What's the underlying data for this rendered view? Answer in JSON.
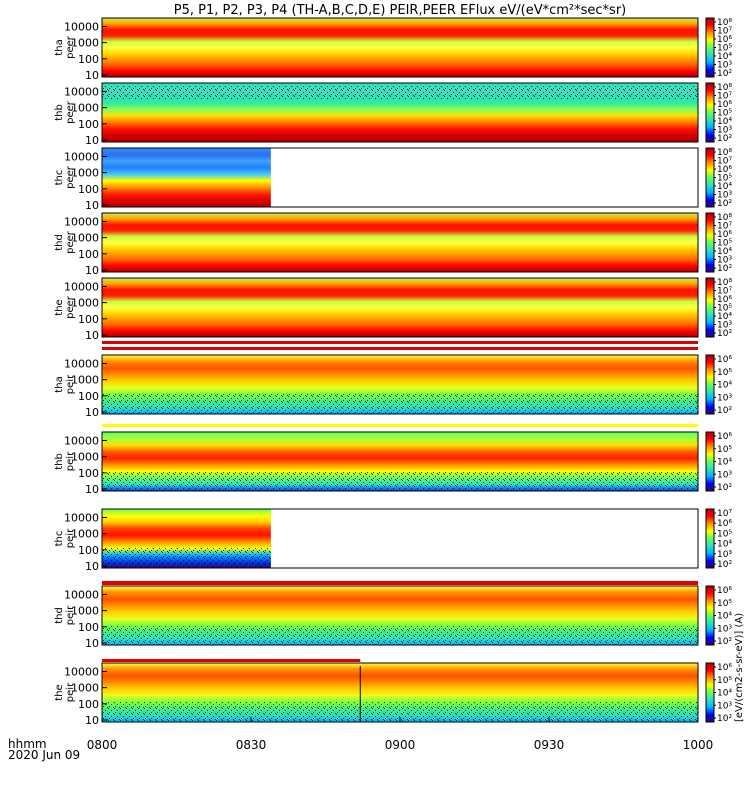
{
  "chart_data": {
    "type": "heatmap",
    "title": "P5, P1, P2, P3, P4 (TH-A,B,C,D,E) PEIR,PEER EFlux eV/(eV*cm²*sec*sr)",
    "x_axis": {
      "label_line1": "hhmm",
      "label_line2": "2020 Jun 09",
      "ticks": [
        "0800",
        "0830",
        "0900",
        "0930",
        "1000"
      ],
      "range_minutes": [
        0,
        120
      ]
    },
    "y_scale": "log",
    "y_ticks": [
      "10",
      "100",
      "1000",
      "10000"
    ],
    "colorbar_label": "[eV/(cm2-s-sr-eV)] (A)",
    "colormap": [
      "#2a0a6e",
      "#0000ff",
      "#00b4ff",
      "#30e0c0",
      "#60ff60",
      "#ffff00",
      "#ff9000",
      "#ff0000",
      "#b00000"
    ],
    "panels": [
      {
        "probe": "tha",
        "species": "peer",
        "data_end_min": 120,
        "cbar_ticks": [
          "10²",
          "10³",
          "10⁴",
          "10⁵",
          "10⁶",
          "10⁷",
          "10⁸"
        ]
      },
      {
        "probe": "thb",
        "species": "peer",
        "data_end_min": 120,
        "cbar_ticks": [
          "10²",
          "10³",
          "10⁴",
          "10⁵",
          "10⁶",
          "10⁷",
          "10⁸"
        ]
      },
      {
        "probe": "thc",
        "species": "peer",
        "data_end_min": 34,
        "cbar_ticks": [
          "10²",
          "10³",
          "10⁴",
          "10⁵",
          "10⁶",
          "10⁷",
          "10⁸"
        ]
      },
      {
        "probe": "thd",
        "species": "peer",
        "data_end_min": 120,
        "cbar_ticks": [
          "10²",
          "10³",
          "10⁴",
          "10⁵",
          "10⁶",
          "10⁷",
          "10⁸"
        ]
      },
      {
        "probe": "the",
        "species": "peer",
        "data_end_min": 120,
        "cbar_ticks": [
          "10²",
          "10³",
          "10⁴",
          "10⁵",
          "10⁶",
          "10⁷",
          "10⁸"
        ]
      },
      {
        "probe": "tha",
        "species": "peir",
        "data_end_min": 120,
        "cbar_ticks": [
          "10²",
          "10³",
          "10⁴",
          "10⁵",
          "10⁶"
        ]
      },
      {
        "probe": "thb",
        "species": "peir",
        "data_end_min": 120,
        "cbar_ticks": [
          "10²",
          "10³",
          "10⁴",
          "10⁵",
          "10⁶"
        ]
      },
      {
        "probe": "thc",
        "species": "peir",
        "data_end_min": 34,
        "cbar_ticks": [
          "10²",
          "10³",
          "10⁴",
          "10⁵",
          "10⁶",
          "10⁷"
        ]
      },
      {
        "probe": "thd",
        "species": "peir",
        "data_end_min": 120,
        "cbar_ticks": [
          "10²",
          "10³",
          "10⁴",
          "10⁵",
          "10⁶"
        ]
      },
      {
        "probe": "the",
        "species": "peir",
        "data_end_min": 120,
        "cbar_ticks": [
          "10²",
          "10³",
          "10⁴",
          "10⁵",
          "10⁶"
        ]
      }
    ]
  }
}
